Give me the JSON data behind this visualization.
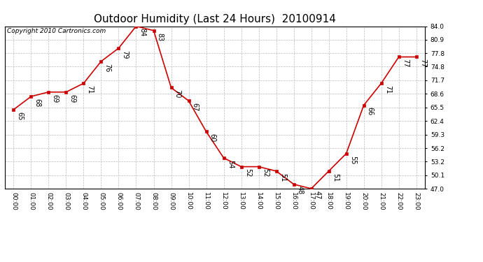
{
  "title": "Outdoor Humidity (Last 24 Hours)  20100914",
  "copyright_text": "Copyright 2010 Cartronics.com",
  "hours": [
    0,
    1,
    2,
    3,
    4,
    5,
    6,
    7,
    8,
    9,
    10,
    11,
    12,
    13,
    14,
    15,
    16,
    17,
    18,
    19,
    20,
    21,
    22,
    23
  ],
  "values": [
    65,
    68,
    69,
    69,
    71,
    76,
    79,
    84,
    83,
    70,
    67,
    60,
    54,
    52,
    52,
    51,
    48,
    47,
    51,
    55,
    66,
    71,
    77,
    77
  ],
  "x_tick_labels": [
    "00:00",
    "01:00",
    "02:00",
    "03:00",
    "04:00",
    "05:00",
    "06:00",
    "07:00",
    "08:00",
    "09:00",
    "10:00",
    "11:00",
    "12:00",
    "13:00",
    "14:00",
    "15:00",
    "16:00",
    "17:00",
    "18:00",
    "19:00",
    "20:00",
    "21:00",
    "22:00",
    "23:00"
  ],
  "y_ticks": [
    47.0,
    50.1,
    53.2,
    56.2,
    59.3,
    62.4,
    65.5,
    68.6,
    71.7,
    74.8,
    77.8,
    80.9,
    84.0
  ],
  "ylim": [
    47.0,
    84.0
  ],
  "line_color": "#cc0000",
  "marker_color": "#cc0000",
  "bg_color": "#ffffff",
  "plot_bg_color": "#ffffff",
  "grid_color": "#bbbbbb",
  "title_fontsize": 11,
  "label_fontsize": 6.5,
  "annotation_fontsize": 7,
  "copyright_fontsize": 6.5
}
